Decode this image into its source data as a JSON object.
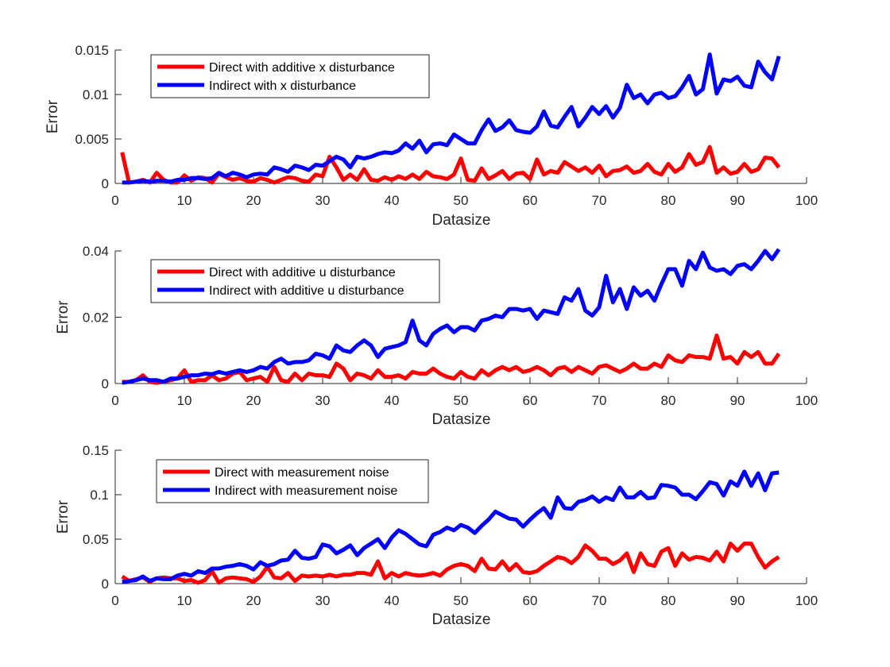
{
  "chart_data": [
    {
      "type": "line",
      "xlabel": "Datasize",
      "ylabel": "Error",
      "xlim": [
        0,
        100
      ],
      "ylim": [
        0,
        0.015
      ],
      "xticks": [
        0,
        10,
        20,
        30,
        40,
        50,
        60,
        70,
        80,
        90,
        100
      ],
      "yticks": [
        0,
        0.005,
        0.01,
        0.015
      ],
      "xtick_labels": [
        "0",
        "10",
        "20",
        "30",
        "40",
        "50",
        "60",
        "70",
        "80",
        "90",
        "100"
      ],
      "ytick_labels": [
        "0",
        "0.005",
        "0.01",
        "0.015"
      ],
      "legend_position": "top-left",
      "grid": false,
      "x": [
        1,
        2,
        3,
        4,
        5,
        6,
        7,
        8,
        9,
        10,
        11,
        12,
        13,
        14,
        15,
        16,
        17,
        18,
        19,
        20,
        21,
        22,
        23,
        24,
        25,
        26,
        27,
        28,
        29,
        30,
        31,
        32,
        33,
        34,
        35,
        36,
        37,
        38,
        39,
        40,
        41,
        42,
        43,
        44,
        45,
        46,
        47,
        48,
        49,
        50,
        51,
        52,
        53,
        54,
        55,
        56,
        57,
        58,
        59,
        60,
        61,
        62,
        63,
        64,
        65,
        66,
        67,
        68,
        69,
        70,
        71,
        72,
        73,
        74,
        75,
        76,
        77,
        78,
        79,
        80,
        81,
        82,
        83,
        84,
        85,
        86,
        87,
        88,
        89,
        90,
        91,
        92,
        93,
        94,
        95,
        96
      ],
      "series": [
        {
          "name": "Direct with additive x disturbance",
          "color": "#ff0000",
          "values": [
            0.0035,
            0.0001,
            0.0002,
            0.0004,
            0.0001,
            0.0012,
            0.0004,
            0.0001,
            0.0001,
            0.0009,
            0.0003,
            0.0007,
            0.0006,
            0.0001,
            0.0011,
            0.0007,
            0.0004,
            0.0006,
            0.0003,
            0.0002,
            0.0006,
            0.0004,
            0.0001,
            0.0004,
            0.0007,
            0.0006,
            0.0003,
            0.0002,
            0.001,
            0.0008,
            0.003,
            0.0018,
            0.0004,
            0.001,
            0.0004,
            0.0016,
            0.0004,
            0.0003,
            0.0007,
            0.0004,
            0.0008,
            0.0005,
            0.001,
            0.0005,
            0.0013,
            0.0008,
            0.0007,
            0.0005,
            0.001,
            0.0028,
            0.0004,
            0.0003,
            0.0017,
            0.0005,
            0.0009,
            0.0014,
            0.0005,
            0.0011,
            0.0012,
            0.0005,
            0.0027,
            0.001,
            0.0014,
            0.0012,
            0.0024,
            0.0019,
            0.0014,
            0.0018,
            0.0012,
            0.002,
            0.0008,
            0.0014,
            0.0015,
            0.0019,
            0.0012,
            0.0014,
            0.0022,
            0.0013,
            0.001,
            0.0022,
            0.0013,
            0.0018,
            0.0033,
            0.0021,
            0.0024,
            0.0041,
            0.0012,
            0.0018,
            0.0011,
            0.0013,
            0.0022,
            0.0013,
            0.0016,
            0.0029,
            0.0028,
            0.0018
          ]
        },
        {
          "name": "Indirect with x disturbance",
          "color": "#0000ff",
          "values": [
            0.0001,
            0.0001,
            0.0002,
            0.0003,
            0.0002,
            0.0003,
            0.0003,
            0.0002,
            0.0004,
            0.0004,
            0.0006,
            0.0006,
            0.0005,
            0.0006,
            0.0012,
            0.0008,
            0.0012,
            0.001,
            0.0007,
            0.001,
            0.0011,
            0.001,
            0.0018,
            0.0016,
            0.0013,
            0.002,
            0.0018,
            0.0015,
            0.0021,
            0.002,
            0.0025,
            0.003,
            0.0027,
            0.0018,
            0.003,
            0.0028,
            0.003,
            0.0033,
            0.0035,
            0.0034,
            0.0037,
            0.0045,
            0.0039,
            0.0048,
            0.0035,
            0.0044,
            0.0045,
            0.0043,
            0.0055,
            0.005,
            0.0045,
            0.0045,
            0.006,
            0.0072,
            0.0059,
            0.0063,
            0.0071,
            0.006,
            0.0058,
            0.0057,
            0.0064,
            0.0081,
            0.0065,
            0.0063,
            0.0075,
            0.0086,
            0.0064,
            0.0074,
            0.0086,
            0.0078,
            0.0087,
            0.0074,
            0.0085,
            0.0111,
            0.0096,
            0.01,
            0.009,
            0.01,
            0.0102,
            0.0096,
            0.0098,
            0.0108,
            0.0121,
            0.01,
            0.0106,
            0.0145,
            0.0101,
            0.0117,
            0.0115,
            0.012,
            0.011,
            0.0108,
            0.0137,
            0.0125,
            0.0117,
            0.0143
          ]
        }
      ]
    },
    {
      "type": "line",
      "xlabel": "Datasize",
      "ylabel": "Error",
      "xlim": [
        0,
        100
      ],
      "ylim": [
        0,
        0.04
      ],
      "xticks": [
        0,
        10,
        20,
        30,
        40,
        50,
        60,
        70,
        80,
        90,
        100
      ],
      "yticks": [
        0,
        0.02,
        0.04
      ],
      "xtick_labels": [
        "0",
        "10",
        "20",
        "30",
        "40",
        "50",
        "60",
        "70",
        "80",
        "90",
        "100"
      ],
      "ytick_labels": [
        "0",
        "0.02",
        "0.04"
      ],
      "legend_position": "top-left",
      "grid": false,
      "x": [
        1,
        2,
        3,
        4,
        5,
        6,
        7,
        8,
        9,
        10,
        11,
        12,
        13,
        14,
        15,
        16,
        17,
        18,
        19,
        20,
        21,
        22,
        23,
        24,
        25,
        26,
        27,
        28,
        29,
        30,
        31,
        32,
        33,
        34,
        35,
        36,
        37,
        38,
        39,
        40,
        41,
        42,
        43,
        44,
        45,
        46,
        47,
        48,
        49,
        50,
        51,
        52,
        53,
        54,
        55,
        56,
        57,
        58,
        59,
        60,
        61,
        62,
        63,
        64,
        65,
        66,
        67,
        68,
        69,
        70,
        71,
        72,
        73,
        74,
        75,
        76,
        77,
        78,
        79,
        80,
        81,
        82,
        83,
        84,
        85,
        86,
        87,
        88,
        89,
        90,
        91,
        92,
        93,
        94,
        95,
        96
      ],
      "series": [
        {
          "name": "Direct with additive u disturbance",
          "color": "#ff0000",
          "values": [
            0.0005,
            0.0005,
            0.001,
            0.0025,
            0.0005,
            0.0002,
            0.0005,
            0.001,
            0.0015,
            0.004,
            0.0005,
            0.001,
            0.001,
            0.0025,
            0.001,
            0.0015,
            0.003,
            0.0035,
            0.001,
            0.0015,
            0.002,
            0.0005,
            0.005,
            0.001,
            0.0005,
            0.003,
            0.001,
            0.003,
            0.0025,
            0.0025,
            0.002,
            0.006,
            0.0045,
            0.001,
            0.003,
            0.0025,
            0.0015,
            0.004,
            0.002,
            0.002,
            0.0025,
            0.0015,
            0.0035,
            0.003,
            0.003,
            0.0045,
            0.003,
            0.002,
            0.0015,
            0.0035,
            0.002,
            0.0015,
            0.004,
            0.0025,
            0.004,
            0.005,
            0.004,
            0.005,
            0.0035,
            0.004,
            0.005,
            0.004,
            0.0025,
            0.0045,
            0.005,
            0.0035,
            0.005,
            0.004,
            0.003,
            0.005,
            0.0055,
            0.0045,
            0.0035,
            0.0045,
            0.006,
            0.0045,
            0.0045,
            0.006,
            0.005,
            0.0085,
            0.007,
            0.0065,
            0.0085,
            0.008,
            0.008,
            0.0075,
            0.0145,
            0.0075,
            0.008,
            0.006,
            0.0095,
            0.008,
            0.0095,
            0.006,
            0.006,
            0.009
          ]
        },
        {
          "name": "Indirect with additive u disturbance",
          "color": "#0000ff",
          "values": [
            0.0002,
            0.0005,
            0.001,
            0.0015,
            0.001,
            0.001,
            0.0005,
            0.0015,
            0.0015,
            0.002,
            0.0025,
            0.0025,
            0.003,
            0.0028,
            0.0035,
            0.003,
            0.0035,
            0.004,
            0.0035,
            0.004,
            0.005,
            0.0045,
            0.0065,
            0.0075,
            0.006,
            0.0065,
            0.0065,
            0.007,
            0.009,
            0.0085,
            0.0075,
            0.0115,
            0.01,
            0.0095,
            0.0115,
            0.013,
            0.0115,
            0.008,
            0.0105,
            0.011,
            0.0115,
            0.0125,
            0.019,
            0.013,
            0.0115,
            0.015,
            0.0165,
            0.0175,
            0.0155,
            0.017,
            0.017,
            0.016,
            0.019,
            0.0195,
            0.0205,
            0.02,
            0.0225,
            0.0225,
            0.022,
            0.0225,
            0.0195,
            0.022,
            0.0215,
            0.021,
            0.026,
            0.025,
            0.0285,
            0.022,
            0.0205,
            0.023,
            0.0325,
            0.0245,
            0.0285,
            0.0225,
            0.029,
            0.0265,
            0.028,
            0.025,
            0.03,
            0.0345,
            0.0345,
            0.0295,
            0.037,
            0.0345,
            0.0395,
            0.035,
            0.034,
            0.0345,
            0.033,
            0.0355,
            0.036,
            0.0345,
            0.037,
            0.04,
            0.0375,
            0.0405
          ]
        }
      ]
    },
    {
      "type": "line",
      "xlabel": "Datasize",
      "ylabel": "Error",
      "xlim": [
        0,
        100
      ],
      "ylim": [
        0,
        0.15
      ],
      "xticks": [
        0,
        10,
        20,
        30,
        40,
        50,
        60,
        70,
        80,
        90,
        100
      ],
      "yticks": [
        0,
        0.05,
        0.1,
        0.15
      ],
      "xtick_labels": [
        "0",
        "10",
        "20",
        "30",
        "40",
        "50",
        "60",
        "70",
        "80",
        "90",
        "100"
      ],
      "ytick_labels": [
        "0",
        "0.05",
        "0.1",
        "0.15"
      ],
      "legend_position": "top-left",
      "grid": false,
      "x": [
        1,
        2,
        3,
        4,
        5,
        6,
        7,
        8,
        9,
        10,
        11,
        12,
        13,
        14,
        15,
        16,
        17,
        18,
        19,
        20,
        21,
        22,
        23,
        24,
        25,
        26,
        27,
        28,
        29,
        30,
        31,
        32,
        33,
        34,
        35,
        36,
        37,
        38,
        39,
        40,
        41,
        42,
        43,
        44,
        45,
        46,
        47,
        48,
        49,
        50,
        51,
        52,
        53,
        54,
        55,
        56,
        57,
        58,
        59,
        60,
        61,
        62,
        63,
        64,
        65,
        66,
        67,
        68,
        69,
        70,
        71,
        72,
        73,
        74,
        75,
        76,
        77,
        78,
        79,
        80,
        81,
        82,
        83,
        84,
        85,
        86,
        87,
        88,
        89,
        90,
        91,
        92,
        93,
        94,
        95,
        96
      ],
      "series": [
        {
          "name": "Direct with measurement noise",
          "color": "#ff0000",
          "values": [
            0.008,
            0.003,
            0.005,
            0.007,
            0.002,
            0.006,
            0.007,
            0.006,
            0.006,
            0.003,
            0.004,
            0.001,
            0.004,
            0.014,
            0.001,
            0.006,
            0.007,
            0.006,
            0.005,
            0.002,
            0.008,
            0.019,
            0.007,
            0.006,
            0.012,
            0.003,
            0.009,
            0.008,
            0.009,
            0.008,
            0.01,
            0.008,
            0.01,
            0.01,
            0.012,
            0.012,
            0.01,
            0.025,
            0.006,
            0.012,
            0.008,
            0.012,
            0.01,
            0.009,
            0.01,
            0.012,
            0.009,
            0.016,
            0.02,
            0.022,
            0.02,
            0.014,
            0.028,
            0.017,
            0.016,
            0.025,
            0.015,
            0.022,
            0.013,
            0.012,
            0.014,
            0.02,
            0.025,
            0.03,
            0.028,
            0.023,
            0.03,
            0.043,
            0.037,
            0.028,
            0.028,
            0.022,
            0.026,
            0.034,
            0.013,
            0.034,
            0.022,
            0.02,
            0.036,
            0.04,
            0.02,
            0.034,
            0.027,
            0.03,
            0.029,
            0.026,
            0.036,
            0.025,
            0.045,
            0.037,
            0.045,
            0.045,
            0.03,
            0.018,
            0.025,
            0.03
          ]
        },
        {
          "name": "Indirect with measurement noise",
          "color": "#0000ff",
          "values": [
            0.002,
            0.003,
            0.004,
            0.008,
            0.003,
            0.006,
            0.005,
            0.005,
            0.009,
            0.011,
            0.009,
            0.014,
            0.012,
            0.017,
            0.017,
            0.019,
            0.02,
            0.022,
            0.02,
            0.016,
            0.024,
            0.02,
            0.022,
            0.026,
            0.027,
            0.037,
            0.029,
            0.028,
            0.03,
            0.044,
            0.042,
            0.034,
            0.038,
            0.043,
            0.032,
            0.04,
            0.045,
            0.05,
            0.04,
            0.052,
            0.06,
            0.056,
            0.05,
            0.044,
            0.042,
            0.055,
            0.058,
            0.063,
            0.06,
            0.066,
            0.063,
            0.057,
            0.065,
            0.072,
            0.081,
            0.077,
            0.073,
            0.072,
            0.064,
            0.072,
            0.079,
            0.085,
            0.074,
            0.097,
            0.085,
            0.084,
            0.092,
            0.094,
            0.098,
            0.092,
            0.097,
            0.094,
            0.108,
            0.097,
            0.097,
            0.103,
            0.096,
            0.097,
            0.111,
            0.11,
            0.108,
            0.1,
            0.1,
            0.095,
            0.104,
            0.114,
            0.112,
            0.099,
            0.115,
            0.11,
            0.126,
            0.11,
            0.124,
            0.105,
            0.124,
            0.125
          ]
        }
      ]
    }
  ]
}
